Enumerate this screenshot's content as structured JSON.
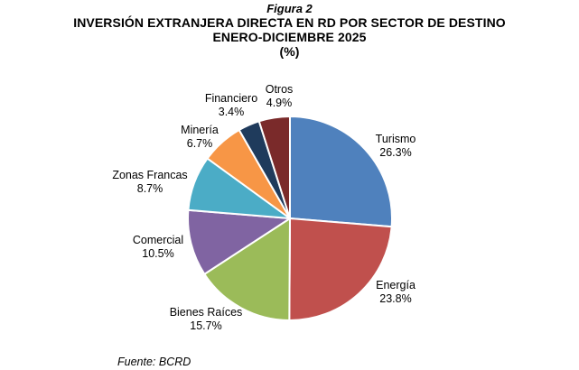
{
  "figure_label": "Figura 2",
  "title_lines": [
    "INVERSIÓN EXTRANJERA DIRECTA EN RD POR SECTOR DE DESTINO",
    "ENERO-DICIEMBRE 2025",
    "(%)"
  ],
  "source": "Fuente: BCRD",
  "chart_data": {
    "type": "pie",
    "unit": "%",
    "slices": [
      {
        "label": "Turismo",
        "value": 26.3,
        "value_label": "26.3%",
        "color": "#4f81bd"
      },
      {
        "label": "Energía",
        "value": 23.8,
        "value_label": "23.8%",
        "color": "#c0504d"
      },
      {
        "label": "Bienes Raíces",
        "value": 15.7,
        "value_label": "15.7%",
        "color": "#9bbb59"
      },
      {
        "label": "Comercial",
        "value": 10.5,
        "value_label": "10.5%",
        "color": "#8064a2"
      },
      {
        "label": "Zonas Francas",
        "value": 8.7,
        "value_label": "8.7%",
        "color": "#4bacc6"
      },
      {
        "label": "Minería",
        "value": 6.7,
        "value_label": "6.7%",
        "color": "#f79646"
      },
      {
        "label": "Financiero",
        "value": 3.4,
        "value_label": "3.4%",
        "color": "#1f3b5c"
      },
      {
        "label": "Otros",
        "value": 4.9,
        "value_label": "4.9%",
        "color": "#7a2a2a"
      }
    ]
  }
}
